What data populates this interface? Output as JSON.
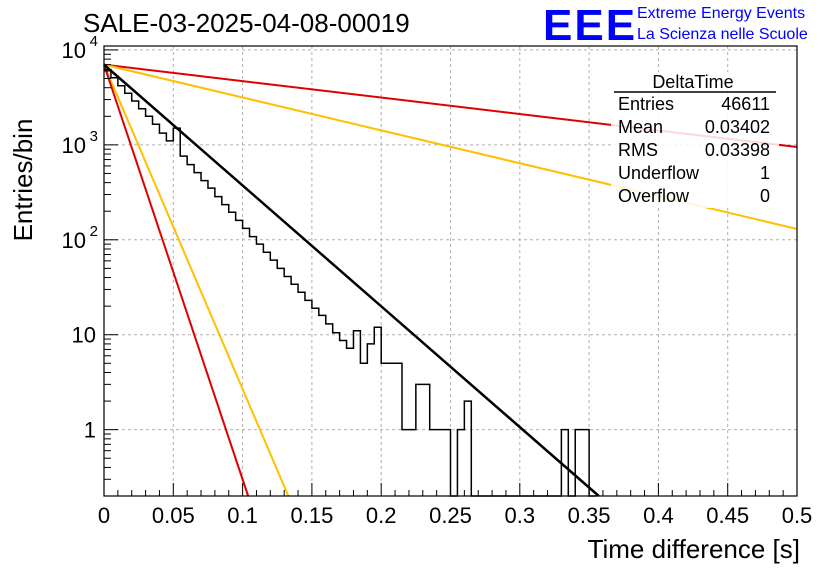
{
  "header": {
    "run_title": "SALE-03-2025-04-08-00019",
    "logo_text": "EEE",
    "org_line1": "Extreme Energy Events",
    "org_line2": "La Scienza nelle Scuole"
  },
  "stats": {
    "title": "DeltaTime",
    "rows": [
      {
        "label": "Entries",
        "value": "46611"
      },
      {
        "label": "Mean",
        "value": "0.03402"
      },
      {
        "label": "RMS",
        "value": "0.03398"
      },
      {
        "label": "Underflow",
        "value": "1"
      },
      {
        "label": "Overflow",
        "value": "0"
      }
    ]
  },
  "colors": {
    "histogram": "#000000",
    "fit": "#000000",
    "reference_red": "#e00000",
    "reference_orange": "#ffc000",
    "grid": "#b0b0b0",
    "logo": "#0000ff"
  },
  "chart_data": {
    "type": "histogram",
    "title": "",
    "xlabel": "Time difference [s]",
    "ylabel": "Entries/bin",
    "xlim": [
      0,
      0.5
    ],
    "ylim": [
      0.2,
      11000
    ],
    "yscale": "log",
    "grid": true,
    "x_ticks": [
      {
        "v": 0,
        "label": "0"
      },
      {
        "v": 0.05,
        "label": "0.05"
      },
      {
        "v": 0.1,
        "label": "0.1"
      },
      {
        "v": 0.15,
        "label": "0.15"
      },
      {
        "v": 0.2,
        "label": "0.2"
      },
      {
        "v": 0.25,
        "label": "0.25"
      },
      {
        "v": 0.3,
        "label": "0.3"
      },
      {
        "v": 0.35,
        "label": "0.35"
      },
      {
        "v": 0.4,
        "label": "0.4"
      },
      {
        "v": 0.45,
        "label": "0.45"
      },
      {
        "v": 0.5,
        "label": "0.5"
      }
    ],
    "y_ticks": [
      {
        "v": 1,
        "label": "1"
      },
      {
        "v": 10,
        "label": "10"
      },
      {
        "v": 100,
        "label": "10",
        "exp": "2"
      },
      {
        "v": 1000,
        "label": "10",
        "exp": "3"
      },
      {
        "v": 10000,
        "label": "10",
        "exp": "4"
      }
    ],
    "bin_width": 0.005,
    "histogram": [
      6200,
      5100,
      4200,
      3500,
      2900,
      2400,
      2000,
      1650,
      1330,
      1100,
      1500,
      760,
      620,
      510,
      420,
      350,
      285,
      235,
      195,
      160,
      132,
      108,
      90,
      74,
      61,
      50,
      41,
      34,
      28,
      23,
      19,
      16,
      13,
      10.5,
      8.7,
      7.2,
      11,
      5,
      8,
      12,
      5,
      5,
      5,
      1,
      1,
      3,
      3,
      1,
      1,
      1,
      0,
      1,
      2,
      0,
      0,
      0,
      0,
      0,
      0,
      0,
      0,
      0,
      0,
      0,
      0,
      0,
      1,
      0,
      1,
      1,
      0
    ],
    "fit": {
      "x": [
        0,
        0.357
      ],
      "y": [
        7000,
        0.2
      ]
    },
    "reference_lines": [
      {
        "color": "red",
        "x": [
          0,
          0.5
        ],
        "y": [
          7000,
          950
        ]
      },
      {
        "color": "orange",
        "x": [
          0,
          0.5
        ],
        "y": [
          7000,
          130
        ]
      },
      {
        "color": "orange",
        "x": [
          0,
          0.133
        ],
        "y": [
          7000,
          0.2
        ]
      },
      {
        "color": "red",
        "x": [
          0,
          0.104
        ],
        "y": [
          7000,
          0.2
        ]
      }
    ]
  }
}
